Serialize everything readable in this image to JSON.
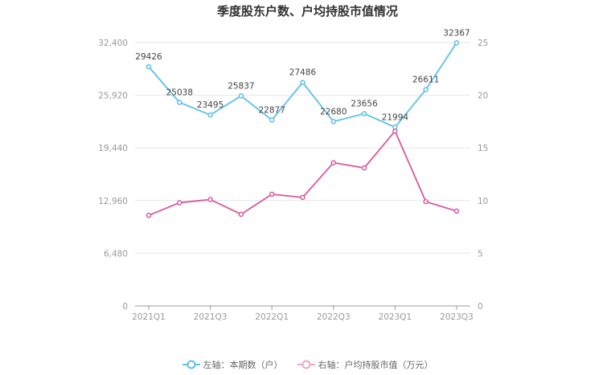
{
  "chart_data": {
    "type": "line",
    "title": "季度股东户数、户均持股市值情况",
    "categories": [
      "2021Q1",
      "2021Q2",
      "2021Q3",
      "2021Q4",
      "2022Q1",
      "2022Q2",
      "2022Q3",
      "2022Q4",
      "2023Q1",
      "2023Q2",
      "2023Q3"
    ],
    "x_tick_labels": [
      "2021Q1",
      "2021Q3",
      "2022Q1",
      "2022Q3",
      "2023Q1",
      "2023Q3"
    ],
    "series": [
      {
        "name": "左轴：本期数（户）",
        "axis": "left",
        "color": "#5bc0eb",
        "values": [
          29426,
          25038,
          23495,
          25837,
          22877,
          27486,
          22680,
          23656,
          21994,
          26611,
          32367
        ],
        "data_labels": true
      },
      {
        "name": "右轴：户均持股市值（万元）",
        "axis": "right",
        "color": "#d9589f",
        "values": [
          8.6,
          9.8,
          10.1,
          8.7,
          10.6,
          10.3,
          13.6,
          13.1,
          16.6,
          9.9,
          9.0
        ],
        "data_labels": false
      }
    ],
    "left_axis": {
      "ylim": [
        0,
        32400
      ],
      "ticks": [
        "0",
        "6,480",
        "12,960",
        "19,440",
        "25,920",
        "32,400"
      ]
    },
    "right_axis": {
      "ylim": [
        0,
        25
      ],
      "ticks": [
        "0",
        "5",
        "10",
        "15",
        "20",
        "25"
      ]
    },
    "grid": true,
    "legend_position": "bottom"
  },
  "legend": {
    "left_label": "左轴：本期数（户）",
    "right_label": "右轴：户均持股市值（万元）"
  }
}
